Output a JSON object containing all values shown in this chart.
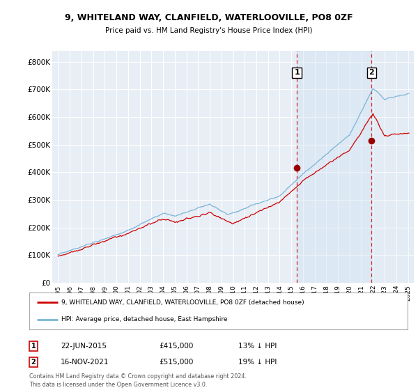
{
  "title1": "9, WHITELAND WAY, CLANFIELD, WATERLOOVILLE, PO8 0ZF",
  "title2": "Price paid vs. HM Land Registry's House Price Index (HPI)",
  "legend_label1": "9, WHITELAND WAY, CLANFIELD, WATERLOOVILLE, PO8 0ZF (detached house)",
  "legend_label2": "HPI: Average price, detached house, East Hampshire",
  "transaction1_date": "22-JUN-2015",
  "transaction1_price": "£415,000",
  "transaction1_hpi": "13% ↓ HPI",
  "transaction1_year": 2015.47,
  "transaction1_value": 415000,
  "transaction2_date": "16-NOV-2021",
  "transaction2_price": "£515,000",
  "transaction2_hpi": "19% ↓ HPI",
  "transaction2_year": 2021.88,
  "transaction2_value": 515000,
  "hpi_color": "#7ab4d8",
  "price_color": "#cc0000",
  "marker_color": "#990000",
  "dashed_line_color": "#cc0000",
  "background_color": "#ffffff",
  "plot_bg_color": "#e8eef5",
  "grid_color": "#ffffff",
  "fill_color": "#c8dff0",
  "fill_alpha": 0.5,
  "ylim_min": 0,
  "ylim_max": 840000,
  "xlim_min": 1994.5,
  "xlim_max": 2025.5,
  "footer": "Contains HM Land Registry data © Crown copyright and database right 2024.\nThis data is licensed under the Open Government Licence v3.0.",
  "yticks": [
    0,
    100000,
    200000,
    300000,
    400000,
    500000,
    600000,
    700000,
    800000
  ],
  "ytick_labels": [
    "£0",
    "£100K",
    "£200K",
    "£300K",
    "£400K",
    "£500K",
    "£600K",
    "£700K",
    "£800K"
  ]
}
